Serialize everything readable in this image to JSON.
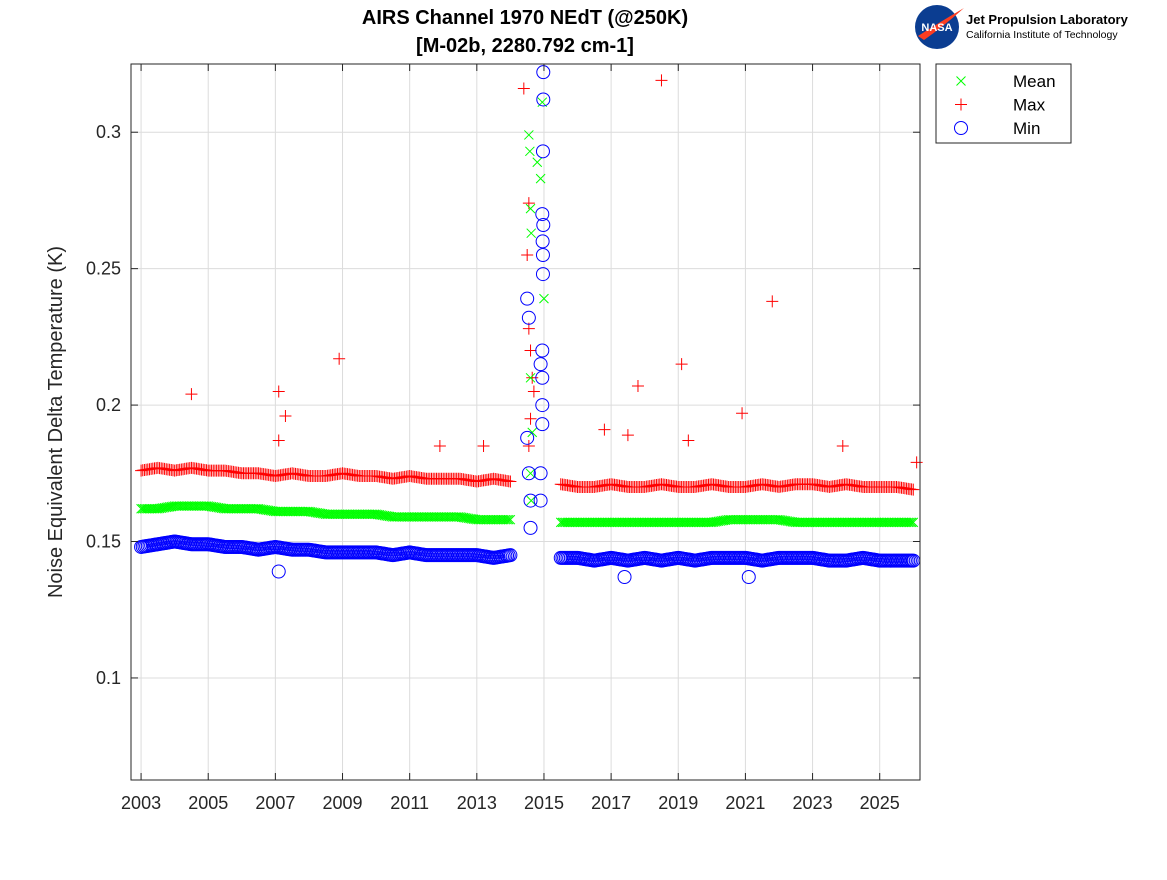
{
  "logo": {
    "org_name": "Jet Propulsion Laboratory",
    "org_subtitle": "California Institute of Technology",
    "emblem_text": "NASA"
  },
  "chart_data": {
    "type": "scatter",
    "title": "AIRS Channel 1970 NEdT (@250K)",
    "subtitle": "[M-02b, 2280.792 cm-1]",
    "xlabel": "",
    "ylabel": "Noise Equivalent Delta Temperature (K)",
    "xlim": [
      2002.7,
      2026.2
    ],
    "ylim": [
      0.0626,
      0.325
    ],
    "xticks": [
      2003,
      2005,
      2007,
      2009,
      2011,
      2013,
      2015,
      2017,
      2019,
      2021,
      2023,
      2025
    ],
    "xtick_labels": [
      "2003",
      "2005",
      "2007",
      "2009",
      "2011",
      "2013",
      "2015",
      "2017",
      "2019",
      "2021",
      "2023",
      "2025"
    ],
    "yticks": [
      0.1,
      0.15,
      0.2,
      0.25,
      0.3
    ],
    "ytick_labels": [
      "0.1",
      "0.15",
      "0.2",
      "0.25",
      "0.3"
    ],
    "grid": true,
    "legend_position": "outside-top-right",
    "x": [
      2003,
      2003.5,
      2004,
      2004.5,
      2005,
      2005.5,
      2006,
      2006.5,
      2007,
      2007.5,
      2008,
      2008.5,
      2009,
      2009.5,
      2010,
      2010.5,
      2011,
      2011.5,
      2012,
      2012.5,
      2013,
      2013.5,
      2014,
      2015.5,
      2016,
      2016.5,
      2017,
      2017.5,
      2018,
      2018.5,
      2019,
      2019.5,
      2020,
      2020.5,
      2021,
      2021.5,
      2022,
      2022.5,
      2023,
      2023.5,
      2024,
      2024.5,
      2025,
      2025.5,
      2026
    ],
    "series": [
      {
        "name": "Mean",
        "marker": "x",
        "color": "#00ff00",
        "values": [
          0.162,
          0.162,
          0.163,
          0.163,
          0.163,
          0.162,
          0.162,
          0.162,
          0.161,
          0.161,
          0.161,
          0.16,
          0.16,
          0.16,
          0.16,
          0.159,
          0.159,
          0.159,
          0.159,
          0.159,
          0.158,
          0.158,
          0.158,
          0.157,
          0.157,
          0.157,
          0.157,
          0.157,
          0.157,
          0.157,
          0.157,
          0.157,
          0.157,
          0.158,
          0.158,
          0.158,
          0.158,
          0.157,
          0.157,
          0.157,
          0.157,
          0.157,
          0.157,
          0.157,
          0.157
        ],
        "extra_points": [
          [
            2014.55,
            0.299
          ],
          [
            2014.58,
            0.293
          ],
          [
            2014.6,
            0.272
          ],
          [
            2014.62,
            0.263
          ],
          [
            2014.8,
            0.289
          ],
          [
            2014.9,
            0.283
          ],
          [
            2014.95,
            0.311
          ],
          [
            2015.0,
            0.239
          ],
          [
            2014.6,
            0.21
          ],
          [
            2014.65,
            0.19
          ],
          [
            2014.6,
            0.175
          ],
          [
            2014.62,
            0.165
          ]
        ]
      },
      {
        "name": "Max",
        "marker": "+",
        "color": "#ff0000",
        "values": [
          0.176,
          0.177,
          0.176,
          0.177,
          0.176,
          0.176,
          0.175,
          0.175,
          0.174,
          0.175,
          0.174,
          0.174,
          0.175,
          0.174,
          0.174,
          0.173,
          0.174,
          0.173,
          0.173,
          0.173,
          0.172,
          0.173,
          0.172,
          0.171,
          0.17,
          0.17,
          0.171,
          0.17,
          0.17,
          0.171,
          0.17,
          0.17,
          0.171,
          0.17,
          0.17,
          0.171,
          0.17,
          0.171,
          0.171,
          0.17,
          0.171,
          0.17,
          0.17,
          0.17,
          0.169
        ],
        "extra_points": [
          [
            2004.5,
            0.204
          ],
          [
            2007.1,
            0.205
          ],
          [
            2007.3,
            0.196
          ],
          [
            2007.1,
            0.187
          ],
          [
            2008.9,
            0.217
          ],
          [
            2011.9,
            0.185
          ],
          [
            2013.2,
            0.185
          ],
          [
            2014.4,
            0.316
          ],
          [
            2014.55,
            0.274
          ],
          [
            2014.5,
            0.255
          ],
          [
            2014.55,
            0.228
          ],
          [
            2014.6,
            0.22
          ],
          [
            2014.65,
            0.21
          ],
          [
            2014.7,
            0.205
          ],
          [
            2014.6,
            0.195
          ],
          [
            2014.55,
            0.185
          ],
          [
            2016.8,
            0.191
          ],
          [
            2017.5,
            0.189
          ],
          [
            2017.8,
            0.207
          ],
          [
            2018.5,
            0.319
          ],
          [
            2019.1,
            0.215
          ],
          [
            2019.3,
            0.187
          ],
          [
            2020.9,
            0.197
          ],
          [
            2021.8,
            0.238
          ],
          [
            2023.9,
            0.185
          ],
          [
            2026.1,
            0.179
          ]
        ]
      },
      {
        "name": "Min",
        "marker": "o",
        "color": "#0000ff",
        "values": [
          0.148,
          0.149,
          0.15,
          0.149,
          0.149,
          0.148,
          0.148,
          0.147,
          0.148,
          0.147,
          0.147,
          0.146,
          0.146,
          0.146,
          0.146,
          0.145,
          0.146,
          0.145,
          0.145,
          0.145,
          0.145,
          0.144,
          0.145,
          0.144,
          0.144,
          0.143,
          0.144,
          0.143,
          0.144,
          0.143,
          0.144,
          0.143,
          0.144,
          0.144,
          0.144,
          0.143,
          0.144,
          0.144,
          0.144,
          0.143,
          0.143,
          0.144,
          0.143,
          0.143,
          0.143
        ],
        "extra_points": [
          [
            2007.1,
            0.139
          ],
          [
            2017.4,
            0.137
          ],
          [
            2021.1,
            0.137
          ],
          [
            2014.98,
            0.322
          ],
          [
            2014.98,
            0.312
          ],
          [
            2014.97,
            0.293
          ],
          [
            2014.95,
            0.27
          ],
          [
            2014.98,
            0.266
          ],
          [
            2014.96,
            0.26
          ],
          [
            2014.97,
            0.255
          ],
          [
            2014.97,
            0.248
          ],
          [
            2014.5,
            0.239
          ],
          [
            2014.55,
            0.232
          ],
          [
            2014.95,
            0.22
          ],
          [
            2014.9,
            0.215
          ],
          [
            2014.95,
            0.21
          ],
          [
            2014.95,
            0.2
          ],
          [
            2014.95,
            0.193
          ],
          [
            2014.5,
            0.188
          ],
          [
            2014.55,
            0.175
          ],
          [
            2014.6,
            0.165
          ],
          [
            2014.6,
            0.155
          ],
          [
            2014.9,
            0.165
          ],
          [
            2014.9,
            0.175
          ]
        ]
      }
    ]
  }
}
